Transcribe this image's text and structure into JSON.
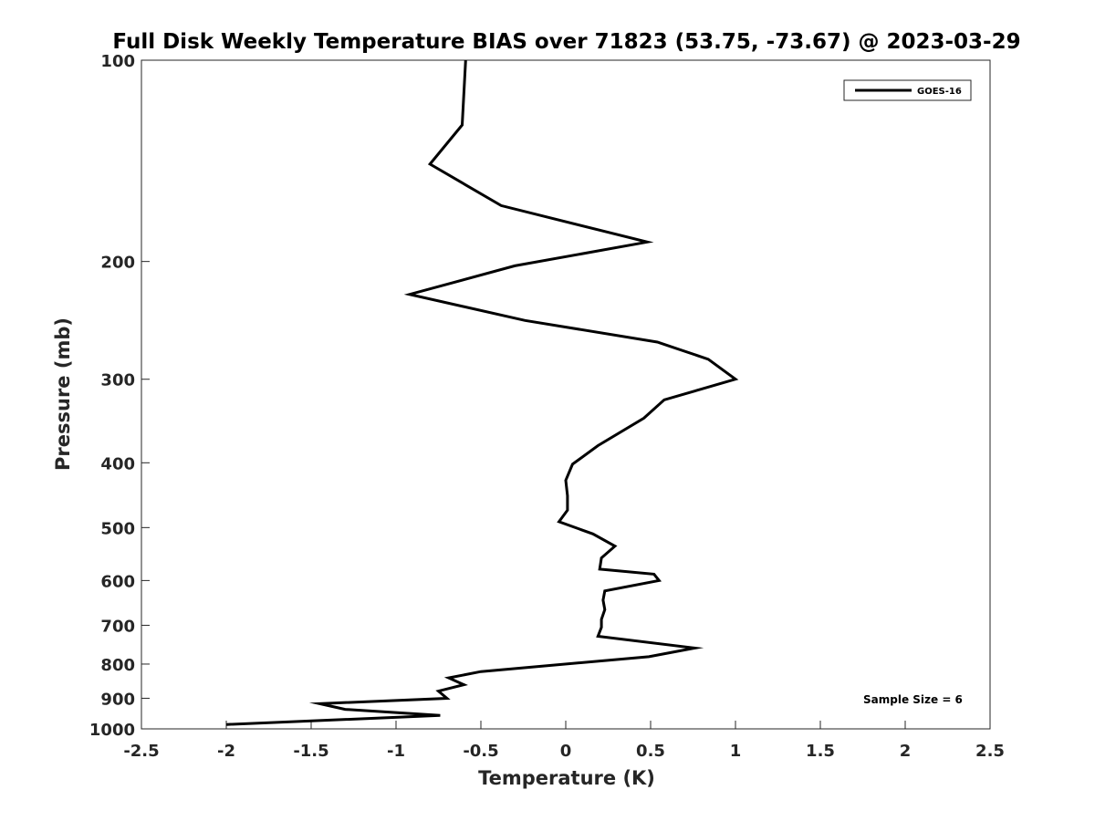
{
  "chart_data": {
    "type": "line",
    "title": "Full Disk Weekly Temperature BIAS over 71823 (53.75, -73.67) @ 2023-03-29",
    "xlabel": "Temperature (K)",
    "ylabel": "Pressure (mb)",
    "xlim": [
      -2.5,
      2.5
    ],
    "ylim": [
      100,
      1000
    ],
    "y_scale": "log",
    "y_reversed": true,
    "grid": false,
    "legend_position": "top-right",
    "x_ticks": [
      "-2.5",
      "-2",
      "-1.5",
      "-1",
      "-0.5",
      "0",
      "0.5",
      "1",
      "1.5",
      "2",
      "2.5"
    ],
    "y_ticks": [
      "100",
      "200",
      "300",
      "400",
      "500",
      "600",
      "700",
      "800",
      "900",
      "1000"
    ],
    "annotation": "Sample Size = 6",
    "series": [
      {
        "name": "GOES-16",
        "color": "#000000",
        "points": [
          [
            -0.59,
            100
          ],
          [
            -0.61,
            125
          ],
          [
            -0.8,
            143
          ],
          [
            -0.38,
            165
          ],
          [
            0.48,
            187
          ],
          [
            -0.3,
            203
          ],
          [
            -0.92,
            224
          ],
          [
            -0.24,
            245
          ],
          [
            0.54,
            264
          ],
          [
            0.84,
            280
          ],
          [
            1.0,
            300
          ],
          [
            0.58,
            322
          ],
          [
            0.46,
            343
          ],
          [
            0.19,
            377
          ],
          [
            0.04,
            402
          ],
          [
            0.0,
            425
          ],
          [
            0.01,
            448
          ],
          [
            0.01,
            471
          ],
          [
            -0.04,
            490
          ],
          [
            0.16,
            511
          ],
          [
            0.29,
            533
          ],
          [
            0.21,
            555
          ],
          [
            0.2,
            577
          ],
          [
            0.52,
            587
          ],
          [
            0.55,
            600
          ],
          [
            0.23,
            622
          ],
          [
            0.22,
            642
          ],
          [
            0.23,
            663
          ],
          [
            0.21,
            686
          ],
          [
            0.21,
            705
          ],
          [
            0.19,
            727
          ],
          [
            0.76,
            757
          ],
          [
            0.49,
            780
          ],
          [
            -0.5,
            821
          ],
          [
            -0.69,
            839
          ],
          [
            -0.6,
            859
          ],
          [
            -0.75,
            878
          ],
          [
            -0.7,
            900
          ],
          [
            -1.45,
            917
          ],
          [
            -1.3,
            935
          ],
          [
            -0.74,
            955
          ],
          [
            -2.0,
            985
          ]
        ]
      }
    ]
  }
}
